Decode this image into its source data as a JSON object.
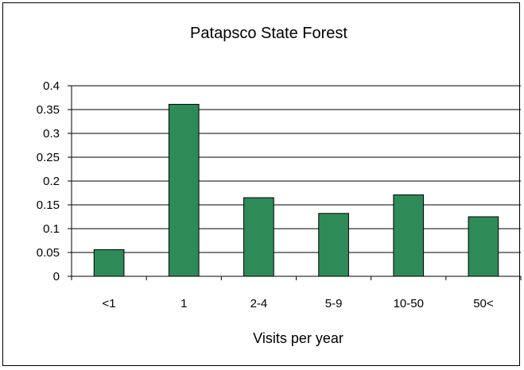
{
  "chart_data": {
    "type": "bar",
    "title": "Patapsco State Forest",
    "xlabel": "Visits per year",
    "ylabel": "",
    "categories": [
      "<1",
      "1",
      "2-4",
      "5-9",
      "10-50",
      "50<"
    ],
    "values": [
      0.056,
      0.361,
      0.165,
      0.132,
      0.171,
      0.125
    ],
    "ylim": [
      0,
      0.4
    ],
    "yticks": [
      "0",
      "0.05",
      "0.1",
      "0.15",
      "0.2",
      "0.25",
      "0.3",
      "0.35",
      "0.4"
    ],
    "grid": true,
    "legend": "none",
    "bar_color": "#2e8b57"
  }
}
